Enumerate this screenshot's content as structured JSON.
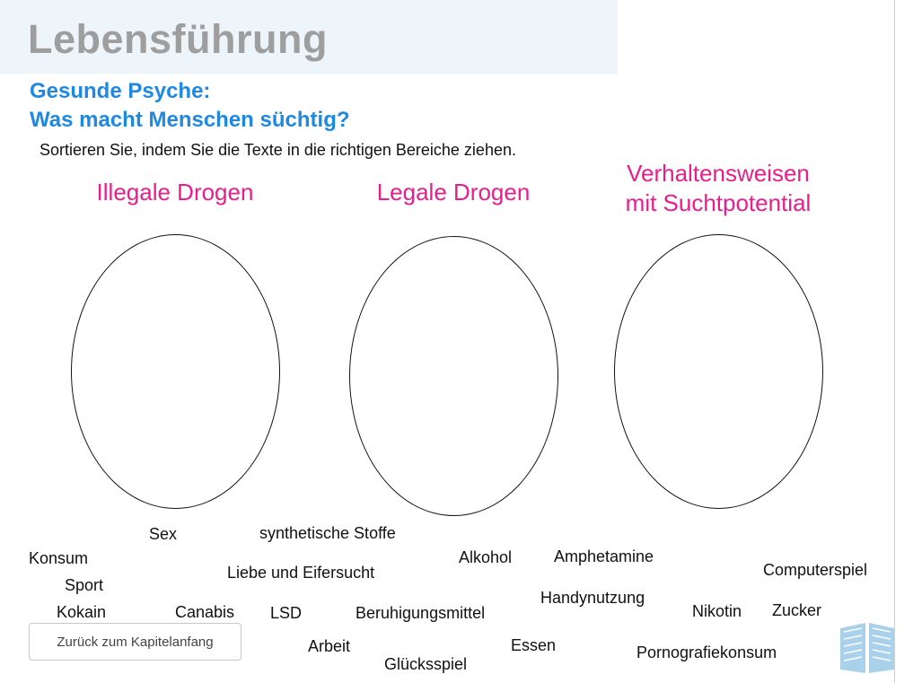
{
  "chapter": {
    "title": "Lebensführung"
  },
  "exercise": {
    "subtitle_line1": "Gesunde Psyche:",
    "subtitle_line2": "Was macht Menschen süchtig?",
    "instruction": "Sortieren Sie, indem Sie die Texte in die richtigen Bereiche ziehen."
  },
  "categories": [
    {
      "line1": "Illegale Drogen",
      "line2": ""
    },
    {
      "line1": "Legale Drogen",
      "line2": ""
    },
    {
      "line1": "Verhaltensweisen",
      "line2": "mit Suchtpotential"
    }
  ],
  "terms": [
    "Sex",
    "synthetische Stoffe",
    "Konsum",
    "Alkohol",
    "Amphetamine",
    "Liebe und Eifersucht",
    "Computerspiel",
    "Sport",
    "Handynutzung",
    "Kokain",
    "Canabis",
    "LSD",
    "Beruhigungsmittel",
    "Nikotin",
    "Zucker",
    "Arbeit",
    "Essen",
    "Pornografiekonsum",
    "Glücksspiel"
  ],
  "navigation": {
    "back_label": "Zurück zum Kapitelanfang"
  },
  "colors": {
    "title": "#9e9e9e",
    "subtitle": "#1e88e5",
    "category": "#e91e8c",
    "header_band": "#eef5fa",
    "book_icon": "#a9d2ea"
  },
  "icons": {
    "footer": "open-book-icon"
  }
}
